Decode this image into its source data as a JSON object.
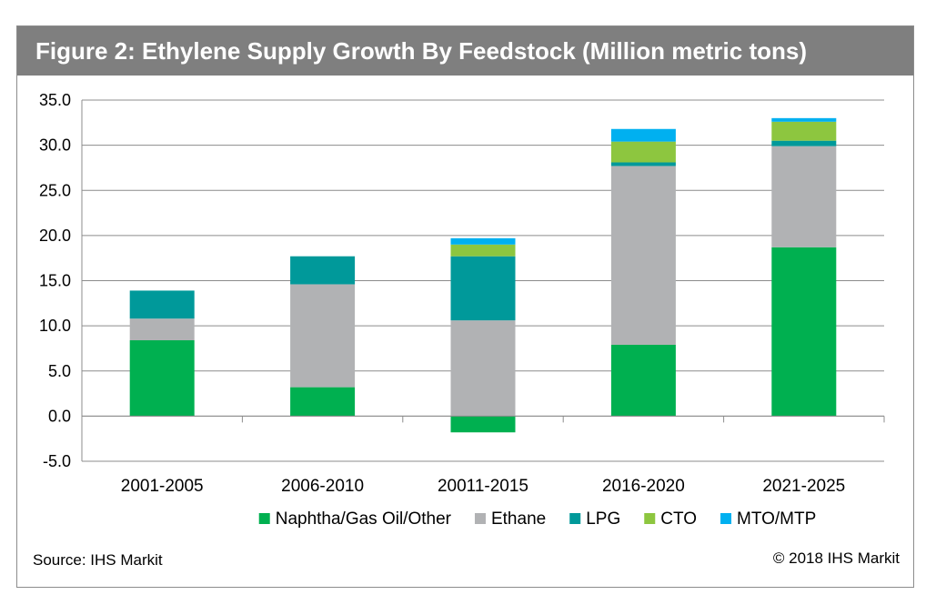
{
  "chart_data": {
    "type": "bar",
    "stacked": true,
    "title": "Figure 2: Ethylene Supply Growth By Feedstock (Million metric tons)",
    "xlabel": "",
    "ylabel": "",
    "ylim": [
      -5,
      35
    ],
    "yticks": [
      -5,
      0,
      5,
      10,
      15,
      20,
      25,
      30,
      35
    ],
    "ytick_labels": [
      "-5.0",
      "0.0",
      "5.0",
      "10.0",
      "15.0",
      "20.0",
      "25.0",
      "30.0",
      "35.0"
    ],
    "grid": true,
    "legend_position": "bottom",
    "categories": [
      "2001-2005",
      "2006-2010",
      "20011-2015",
      "2016-2020",
      "2021-2025"
    ],
    "series": [
      {
        "name": "Naphtha/Gas Oil/Other",
        "color": "#00b050",
        "values": [
          8.4,
          3.2,
          -1.8,
          7.9,
          18.7
        ]
      },
      {
        "name": "Ethane",
        "color": "#b1b2b4",
        "values": [
          2.4,
          11.4,
          10.6,
          19.8,
          11.2
        ]
      },
      {
        "name": "LPG",
        "color": "#00999a",
        "values": [
          3.1,
          3.1,
          7.1,
          0.4,
          0.6
        ]
      },
      {
        "name": "CTO",
        "color": "#8dc63f",
        "values": [
          0.0,
          0.0,
          1.3,
          2.3,
          2.1
        ]
      },
      {
        "name": "MTO/MTP",
        "color": "#00b0f0",
        "values": [
          0.0,
          0.0,
          0.7,
          1.4,
          0.4
        ]
      }
    ]
  },
  "footer": {
    "source": "Source: IHS Markit",
    "copyright": "© 2018 IHS Markit"
  }
}
